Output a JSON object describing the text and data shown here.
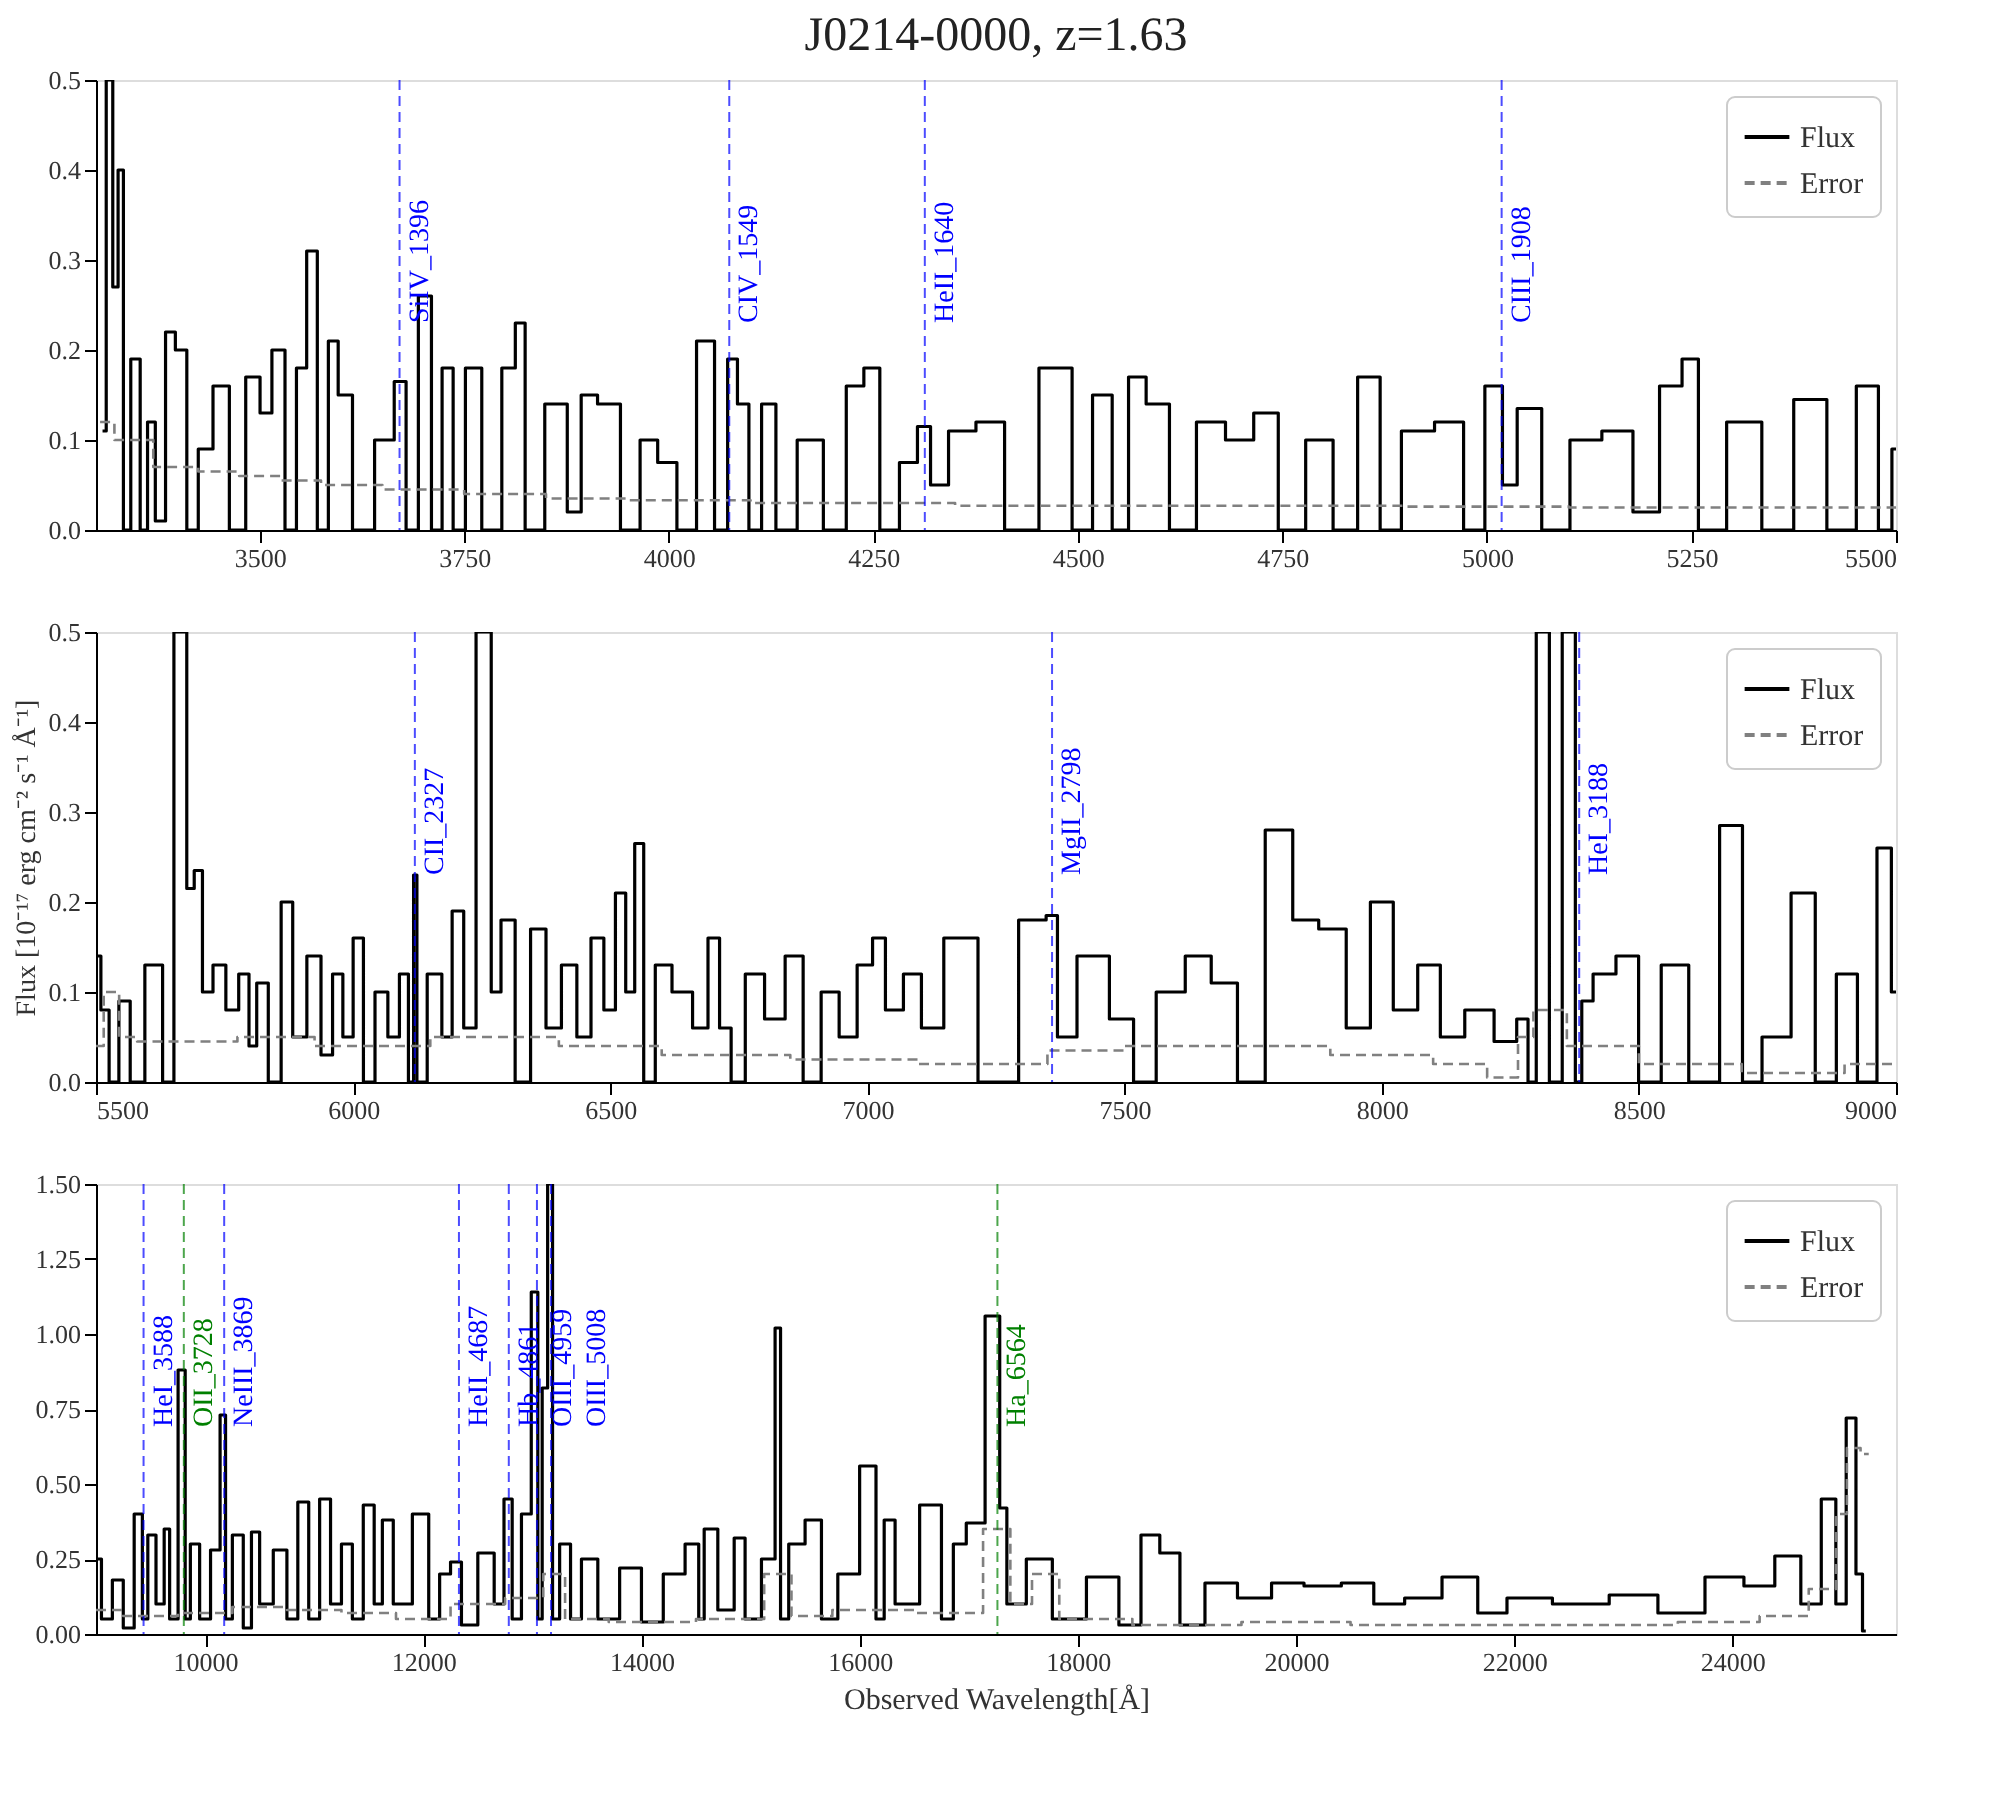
{
  "chart_data": [
    {
      "type": "line",
      "title": "J0214-0000, z=1.63",
      "xlim": [
        3300,
        5500
      ],
      "xticks": [
        3500,
        3750,
        4000,
        4250,
        4500,
        4750,
        5000,
        5250,
        5500
      ],
      "ylim": [
        0,
        0.5
      ],
      "yticks": [
        {
          "value": 0,
          "label": "0.0"
        },
        0.1,
        0.2,
        0.3,
        0.4,
        0.5
      ],
      "legend": "top right",
      "series": [
        {
          "name": "Flux",
          "type": "step",
          "color": "#000000",
          "line_style": "solid",
          "x": [
            3308,
            3317,
            3324,
            3330,
            3337,
            3348,
            3360,
            3366,
            3379,
            3391,
            3403,
            3419,
            3431,
            3455,
            3471,
            3495,
            3506,
            3524,
            3538,
            3552,
            3563,
            3578,
            3590,
            3602,
            3625,
            3656,
            3673,
            3685,
            3703,
            3717,
            3729,
            3744,
            3759,
            3784,
            3808,
            3817,
            3832,
            3865,
            3887,
            3899,
            3927,
            3955,
            3975,
            3998,
            4022,
            4046,
            4066,
            4078,
            4090,
            4106,
            4121,
            4141,
            4173,
            4205,
            4229,
            4248,
            4268,
            4296,
            4312,
            4328,
            4356,
            4395,
            4426,
            4479,
            4507,
            4529,
            4555,
            4569,
            4598,
            4626,
            4664,
            4697,
            4733,
            4757,
            4800,
            4824,
            4860,
            4879,
            4912,
            4960,
            4983,
            5012,
            5026,
            5048,
            5086,
            5117,
            5164,
            5193,
            5229,
            5248,
            5269,
            5317,
            5355,
            5395,
            5436,
            5467,
            5490,
            5500
          ],
          "values": [
            0.11,
            0.5,
            0.27,
            0.4,
            0,
            0.19,
            0,
            0.12,
            0.01,
            0.22,
            0.2,
            0,
            0.09,
            0.16,
            0,
            0.17,
            0.13,
            0.2,
            0,
            0.18,
            0.31,
            0,
            0.21,
            0.15,
            0,
            0.1,
            0.165,
            0,
            0.26,
            0,
            0.18,
            0,
            0.18,
            0,
            0.18,
            0.23,
            0,
            0.14,
            0.02,
            0.15,
            0.14,
            0,
            0.1,
            0.075,
            0,
            0.21,
            0,
            0.19,
            0.14,
            0,
            0.14,
            0,
            0.1,
            0,
            0.16,
            0.18,
            0,
            0.075,
            0.115,
            0.05,
            0.11,
            0.12,
            0,
            0.18,
            0,
            0.15,
            0,
            0.17,
            0.14,
            0,
            0.12,
            0.1,
            0.13,
            0,
            0.1,
            0,
            0.17,
            0,
            0.11,
            0.12,
            0,
            0.16,
            0.05,
            0.135,
            0,
            0.1,
            0.11,
            0.02,
            0.16,
            0.19,
            0,
            0.12,
            0,
            0.145,
            0,
            0.16,
            0,
            0.09
          ]
        },
        {
          "name": "Error",
          "type": "step",
          "color": "#808080",
          "line_style": "dashed",
          "x": [
            3305,
            3340,
            3400,
            3450,
            3500,
            3550,
            3600,
            3700,
            3800,
            3900,
            4000,
            4200,
            4500,
            4800,
            5000,
            5200,
            5500
          ],
          "values": [
            0.12,
            0.1,
            0.07,
            0.065,
            0.06,
            0.055,
            0.05,
            0.045,
            0.04,
            0.035,
            0.033,
            0.03,
            0.027,
            0.027,
            0.026,
            0.025,
            0.025
          ]
        }
      ],
      "ref_lines": [
        {
          "axis": "x",
          "value": 3671,
          "label": "SiIV_1396",
          "color": "#0000ff",
          "line_style": "dashed"
        },
        {
          "axis": "x",
          "value": 4074,
          "label": "CIV_1549",
          "color": "#0000ff",
          "line_style": "dashed"
        },
        {
          "axis": "x",
          "value": 4313,
          "label": "HeII_1640",
          "color": "#0000ff",
          "line_style": "dashed"
        },
        {
          "axis": "x",
          "value": 5018,
          "label": "CIII_1908",
          "color": "#0000ff",
          "line_style": "dashed"
        }
      ]
    },
    {
      "type": "line",
      "ylabel": "Flux [10⁻¹⁷ erg cm⁻² s⁻¹ Å⁻¹]",
      "xlim": [
        5500,
        9000
      ],
      "xticks": [
        5500,
        6000,
        6500,
        7000,
        7500,
        8000,
        8500,
        9000
      ],
      "ylim": [
        0,
        0.5
      ],
      "yticks": [
        {
          "value": 0,
          "label": "0.0"
        },
        0.1,
        0.2,
        0.3,
        0.4,
        0.5
      ],
      "legend": "top right",
      "series": [
        {
          "name": "Flux",
          "type": "step",
          "color": "#000000",
          "line_style": "solid",
          "x": [
            5500,
            5519,
            5532,
            5557,
            5576,
            5614,
            5645,
            5658,
            5670,
            5683,
            5699,
            5715,
            5740,
            5765,
            5790,
            5805,
            5820,
            5850,
            5870,
            5895,
            5925,
            5950,
            5970,
            5990,
            6010,
            6030,
            6055,
            6080,
            6100,
            6115,
            6120,
            6128,
            6160,
            6185,
            6200,
            6230,
            6248,
            6262,
            6275,
            6300,
            6330,
            6360,
            6390,
            6420,
            6450,
            6475,
            6500,
            6520,
            6540,
            6555,
            6575,
            6600,
            6640,
            6680,
            6700,
            6725,
            6745,
            6780,
            6820,
            6860,
            6890,
            6930,
            6960,
            7000,
            7020,
            7050,
            7090,
            7120,
            7177,
            7253,
            7335,
            7360,
            7379,
            7436,
            7505,
            7530,
            7593,
            7643,
            7694,
            7745,
            7802,
            7852,
            7903,
            7959,
            7997,
            8048,
            8092,
            8136,
            8187,
            8250,
            8275,
            8294,
            8307,
            8320,
            8332,
            8370,
            8383,
            8395,
            8427,
            8484,
            8515,
            8572,
            8622,
            8692,
            8711,
            8768,
            8824,
            8862,
            8906,
            8944,
            8982,
            9000
          ],
          "values": [
            0.14,
            0.08,
            0,
            0.09,
            0,
            0.13,
            0,
            0.5,
            0.5,
            0.215,
            0.235,
            0.1,
            0.13,
            0.08,
            0.12,
            0.04,
            0.11,
            0,
            0.2,
            0.05,
            0.14,
            0.03,
            0.12,
            0.05,
            0.16,
            0,
            0.1,
            0.05,
            0.12,
            0,
            0.23,
            0,
            0.12,
            0.05,
            0.19,
            0.06,
            0.5,
            0.5,
            0.1,
            0.18,
            0,
            0.17,
            0.06,
            0.13,
            0.05,
            0.16,
            0.08,
            0.21,
            0.1,
            0.265,
            0,
            0.13,
            0.1,
            0.06,
            0.16,
            0.06,
            0,
            0.12,
            0.07,
            0.14,
            0,
            0.1,
            0.05,
            0.13,
            0.16,
            0.08,
            0.12,
            0.06,
            0.16,
            0,
            0.18,
            0.185,
            0.05,
            0.14,
            0.07,
            0,
            0.1,
            0.14,
            0.11,
            0,
            0.28,
            0.18,
            0.17,
            0.06,
            0.2,
            0.08,
            0.13,
            0.05,
            0.08,
            0.045,
            0.07,
            0,
            0.5,
            0.5,
            0,
            0.5,
            0,
            0.09,
            0.12,
            0.14,
            0,
            0.13,
            0,
            0.285,
            0,
            0.05,
            0.21,
            0,
            0.12,
            0,
            0.26,
            0.1
          ]
        },
        {
          "name": "Error",
          "type": "step",
          "color": "#808080",
          "line_style": "dashed",
          "x": [
            5500,
            5530,
            5560,
            5600,
            5700,
            5850,
            6000,
            6300,
            6500,
            6700,
            7000,
            7200,
            7300,
            7400,
            7600,
            7800,
            8000,
            8200,
            8210,
            8260,
            8270,
            8320,
            8400,
            8600,
            8800,
            9000
          ],
          "values": [
            0.04,
            0.1,
            0.05,
            0.045,
            0.045,
            0.05,
            0.04,
            0.05,
            0.04,
            0.03,
            0.025,
            0.02,
            0.02,
            0.035,
            0.04,
            0.04,
            0.03,
            0.02,
            0.005,
            0.005,
            0.05,
            0.08,
            0.04,
            0.02,
            0.01,
            0.02
          ]
        }
      ],
      "ref_lines": [
        {
          "axis": "x",
          "value": 6120,
          "label": "CII_2327",
          "color": "#0000ff",
          "line_style": "dashed"
        },
        {
          "axis": "x",
          "value": 7359,
          "label": "MgII_2798",
          "color": "#0000ff",
          "line_style": "dashed"
        },
        {
          "axis": "x",
          "value": 8384,
          "label": "HeI_3188",
          "color": "#0000ff",
          "line_style": "dashed"
        }
      ]
    },
    {
      "type": "line",
      "xlabel": "Observed Wavelength[Å]",
      "xlim": [
        9000,
        25500
      ],
      "xticks": [
        10000,
        12000,
        14000,
        16000,
        18000,
        20000,
        22000,
        24000
      ],
      "ylim": [
        0,
        1.5
      ],
      "yticks": [
        {
          "value": 0,
          "label": "0.00"
        },
        {
          "value": 0.25,
          "label": "0.25"
        },
        {
          "value": 0.5,
          "label": "0.50"
        },
        {
          "value": 0.75,
          "label": "0.75"
        },
        {
          "value": 1,
          "label": "1.00"
        },
        {
          "value": 1.25,
          "label": "1.25"
        },
        {
          "value": 1.5,
          "label": "1.50"
        }
      ],
      "legend": "top right",
      "series": [
        {
          "name": "Flux",
          "type": "step",
          "color": "#000000",
          "line_style": "solid",
          "x": [
            9000,
            9100,
            9200,
            9300,
            9400,
            9450,
            9500,
            9600,
            9650,
            9700,
            9805,
            9830,
            9900,
            10000,
            10100,
            10175,
            10200,
            10300,
            10400,
            10450,
            10550,
            10700,
            10800,
            10900,
            11000,
            11100,
            11200,
            11300,
            11400,
            11500,
            11600,
            11650,
            11800,
            12000,
            12100,
            12200,
            12300,
            12400,
            12600,
            12700,
            12780,
            12850,
            12950,
            13030,
            13070,
            13110,
            13170,
            13200,
            13300,
            13400,
            13500,
            13700,
            13900,
            14100,
            14300,
            14500,
            14550,
            14600,
            14800,
            14900,
            15000,
            15200,
            15250,
            15300,
            15400,
            15600,
            15700,
            15900,
            16100,
            16200,
            16250,
            16400,
            16700,
            16800,
            16918,
            17037,
            17263,
            17305,
            17394,
            17662,
            17871,
            18287,
            18466,
            18692,
            18811,
            19061,
            19270,
            19657,
            19895,
            20252,
            20579,
            20847,
            21145,
            21532,
            21800,
            22068,
            22633,
            23109,
            23526,
            23972,
            24240,
            24538,
            24717,
            24913,
            24984,
            25103,
            25163,
            25223
          ],
          "values": [
            0.25,
            0.05,
            0.18,
            0.02,
            0.4,
            0.05,
            0.33,
            0.1,
            0.35,
            0.05,
            0.88,
            0.05,
            0.3,
            0.05,
            0.28,
            0.73,
            0.05,
            0.33,
            0.02,
            0.34,
            0.1,
            0.28,
            0.05,
            0.44,
            0.05,
            0.45,
            0.1,
            0.3,
            0.05,
            0.43,
            0.1,
            0.38,
            0.1,
            0.4,
            0.05,
            0.2,
            0.24,
            0.03,
            0.27,
            0.1,
            0.45,
            0.05,
            0.4,
            1.14,
            0.05,
            0.82,
            1.5,
            0.05,
            0.3,
            0.05,
            0.25,
            0.05,
            0.22,
            0.04,
            0.2,
            0.3,
            0.05,
            0.35,
            0.08,
            0.32,
            0.05,
            0.25,
            1.02,
            0.05,
            0.3,
            0.38,
            0.05,
            0.2,
            0.56,
            0.05,
            0.38,
            0.1,
            0.43,
            0.05,
            0.3,
            0.37,
            1.06,
            0.42,
            0.1,
            0.25,
            0.05,
            0.19,
            0.03,
            0.33,
            0.27,
            0.03,
            0.17,
            0.12,
            0.17,
            0.16,
            0.17,
            0.1,
            0.12,
            0.19,
            0.07,
            0.12,
            0.1,
            0.13,
            0.07,
            0.19,
            0.16,
            0.26,
            0.1,
            0.45,
            0.1,
            0.72,
            0.2,
            0.01
          ]
        },
        {
          "name": "Error",
          "type": "step",
          "color": "#808080",
          "line_style": "dashed",
          "x": [
            9000,
            9500,
            10000,
            10500,
            11000,
            11500,
            12000,
            12500,
            13000,
            13200,
            13400,
            14000,
            15000,
            15250,
            15500,
            16000,
            17000,
            17263,
            17500,
            17660,
            18000,
            19000,
            20000,
            21000,
            22000,
            23000,
            24000,
            24500,
            24900,
            25000,
            25100,
            25250
          ],
          "values": [
            0.08,
            0.06,
            0.07,
            0.09,
            0.08,
            0.07,
            0.05,
            0.1,
            0.12,
            0.2,
            0.05,
            0.04,
            0.05,
            0.2,
            0.06,
            0.08,
            0.07,
            0.35,
            0.1,
            0.2,
            0.05,
            0.03,
            0.04,
            0.03,
            0.03,
            0.03,
            0.04,
            0.06,
            0.15,
            0.4,
            0.62,
            0.6
          ]
        }
      ],
      "ref_lines": [
        {
          "axis": "x",
          "value": 9436,
          "label": "HeI_3588",
          "color": "#0000ff",
          "line_style": "dashed"
        },
        {
          "axis": "x",
          "value": 9805,
          "label": "OII_3728",
          "color": "#008000",
          "line_style": "dashed"
        },
        {
          "axis": "x",
          "value": 10175,
          "label": "NeIII_3869",
          "color": "#0000ff",
          "line_style": "dashed"
        },
        {
          "axis": "x",
          "value": 12327,
          "label": "HeII_4687",
          "color": "#0000ff",
          "line_style": "dashed"
        },
        {
          "axis": "x",
          "value": 12784,
          "label": "Hb_4861",
          "color": "#0000ff",
          "line_style": "dashed"
        },
        {
          "axis": "x",
          "value": 13042,
          "label": "OIII_4959",
          "color": "#0000ff",
          "line_style": "dashed"
        },
        {
          "axis": "x",
          "value": 13171,
          "label": "OIII_5008",
          "color": "#0000ff",
          "line_style": "dashed"
        },
        {
          "axis": "x",
          "value": 17263,
          "label": "Ha_6564",
          "color": "#008000",
          "line_style": "dashed"
        }
      ]
    }
  ]
}
